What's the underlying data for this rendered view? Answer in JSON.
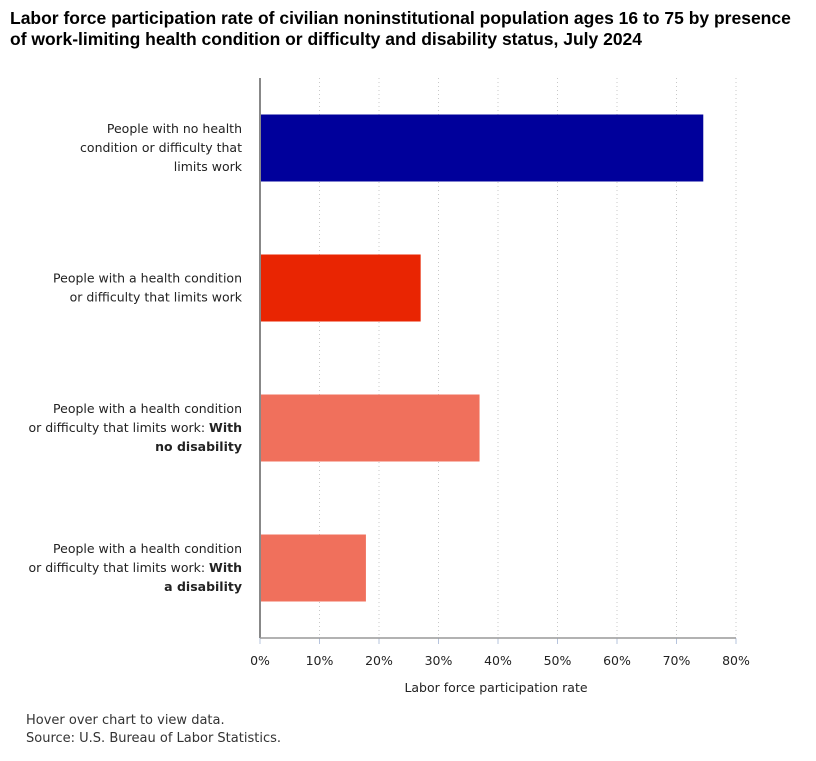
{
  "chart_data": {
    "type": "bar",
    "orientation": "horizontal",
    "title": "Labor force participation rate of civilian noninstitutional population ages 16 to 75 by presence of work-limiting health condition or difficulty and disability status, July 2024",
    "categories": [
      {
        "lines": [
          [
            "People with no health"
          ],
          [
            "condition or difficulty that"
          ],
          [
            "limits work"
          ]
        ]
      },
      {
        "lines": [
          [
            "People with a health condition"
          ],
          [
            "or difficulty that limits work"
          ]
        ]
      },
      {
        "lines": [
          [
            "People with a health condition"
          ],
          [
            "or difficulty that limits work: ",
            "With"
          ],
          [
            "",
            "no disability"
          ]
        ]
      },
      {
        "lines": [
          [
            "People with a health condition"
          ],
          [
            "or difficulty that limits work: ",
            "With"
          ],
          [
            "",
            "a disability"
          ]
        ]
      }
    ],
    "values": [
      74.5,
      27.0,
      36.9,
      17.8
    ],
    "colors": [
      "#00009b",
      "#e92502",
      "#f0705c",
      "#f0705c"
    ],
    "xlabel": "Labor force participation rate",
    "xlim": [
      0,
      80
    ],
    "xticks": [
      0,
      10,
      20,
      30,
      40,
      50,
      60,
      70,
      80
    ],
    "tick_labels": [
      "0%",
      "10%",
      "20%",
      "30%",
      "40%",
      "50%",
      "60%",
      "70%",
      "80%"
    ],
    "grid": "vertical dotted"
  },
  "footer": {
    "hover_note": "Hover over chart to view data.",
    "source": "Source: U.S. Bureau of Labor Statistics."
  }
}
